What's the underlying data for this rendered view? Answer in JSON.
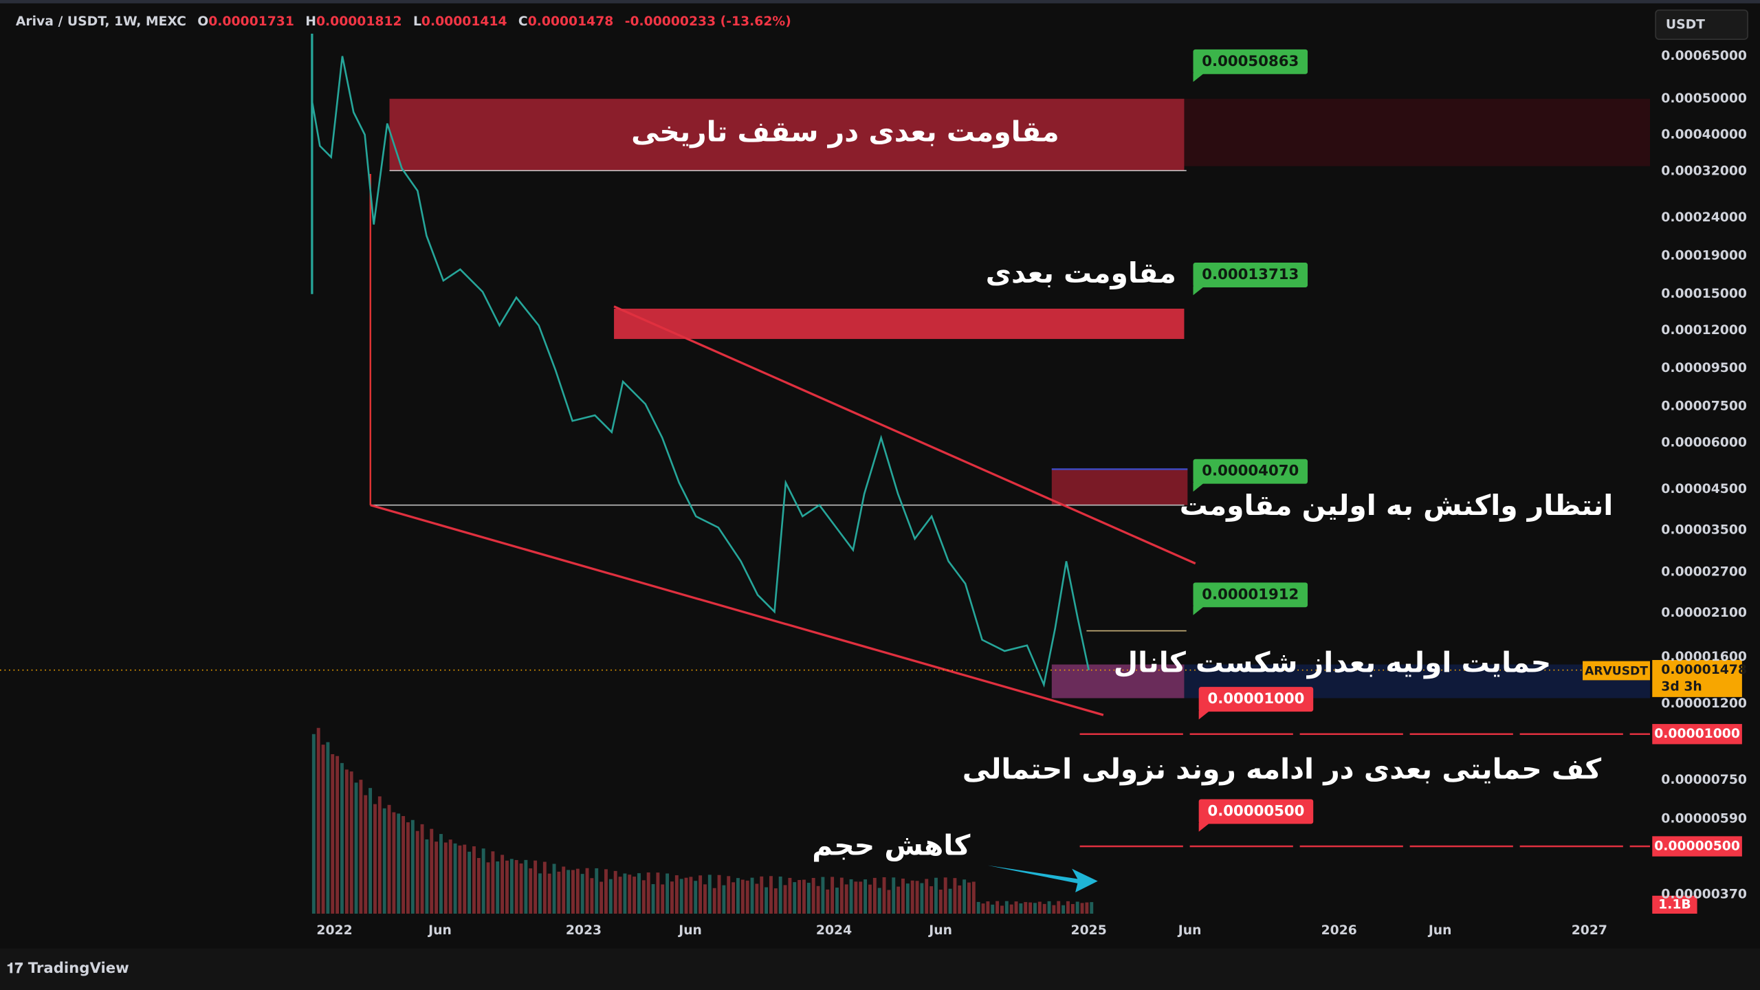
{
  "header": {
    "symbol": "Ariva / USDT, 1W, MEXC",
    "open_label": "O",
    "open": "0.00001731",
    "high_label": "H",
    "high": "0.00001812",
    "low_label": "L",
    "low": "0.00001414",
    "close_label": "C",
    "close": "0.00001478",
    "change": "-0.00000233 (-13.62%)"
  },
  "currency": "USDT",
  "price_axis": [
    "0.00065000",
    "0.00050000",
    "0.00040000",
    "0.00032000",
    "0.00024000",
    "0.00019000",
    "0.00015000",
    "0.00012000",
    "0.00009500",
    "0.00007500",
    "0.00006000",
    "0.00004500",
    "0.00003500",
    "0.00002700",
    "0.00002100",
    "0.00001600",
    "0.00001200",
    "0.00000750",
    "0.00000590",
    "0.00000370"
  ],
  "time_axis": [
    "2022",
    "Jun",
    "2023",
    "Jun",
    "2024",
    "Jun",
    "2025",
    "Jun",
    "2026",
    "Jun",
    "2027"
  ],
  "price_labels": {
    "green": [
      "0.00050863",
      "0.00013713",
      "0.00004070",
      "0.00001912"
    ],
    "red": [
      "0.00001000",
      "0.00000500"
    ]
  },
  "axis_markers": {
    "levels": [
      "0.00001000",
      "0.00000500"
    ],
    "symbol": "ARVUSDT",
    "last_price": "0.00001478",
    "countdown": "3d 3h",
    "volume": "1.1B"
  },
  "annotations": [
    "مقاومت بعدی در سقف تاریخی",
    "مقاومت بعدی",
    "انتظار واکنش به اولین مقاومت",
    "حمایت اولیه بعداز شکست کانال",
    "کف حمایتی بعدی در ادامه روند نزولی احتمالی",
    "کاهش حجم"
  ],
  "brand": "TradingView"
}
